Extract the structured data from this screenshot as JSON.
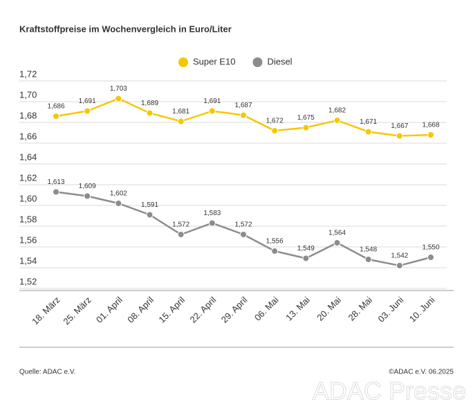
{
  "chart_data": {
    "type": "line",
    "title": "Kraftstoffpreise im Wochenvergleich in Euro/Liter",
    "categories": [
      "18. März",
      "25. März",
      "01. April",
      "08. April",
      "15. April",
      "22. April",
      "29. April",
      "06. Mai",
      "13. Mai",
      "20. Mai",
      "28. Mai",
      "03. Juni",
      "10. Juni"
    ],
    "series": [
      {
        "name": "Super E10",
        "color": "#f5c800",
        "values": [
          1.686,
          1.691,
          1.703,
          1.689,
          1.681,
          1.691,
          1.687,
          1.672,
          1.675,
          1.682,
          1.671,
          1.667,
          1.668
        ],
        "value_labels": [
          "1,686",
          "1,691",
          "1,703",
          "1,689",
          "1,681",
          "1,691",
          "1,687",
          "1,672",
          "1,675",
          "1,682",
          "1,671",
          "1,667",
          "1,668"
        ]
      },
      {
        "name": "Diesel",
        "color": "#8c8c8c",
        "values": [
          1.613,
          1.609,
          1.602,
          1.591,
          1.572,
          1.583,
          1.572,
          1.556,
          1.549,
          1.564,
          1.548,
          1.542,
          1.55
        ],
        "value_labels": [
          "1,613",
          "1,609",
          "1,602",
          "1,591",
          "1,572",
          "1,583",
          "1,572",
          "1,556",
          "1,549",
          "1,564",
          "1,548",
          "1,542",
          "1,550"
        ]
      }
    ],
    "ylim": [
      1.52,
      1.72
    ],
    "yticks": [
      {
        "value": 1.52,
        "label": "1,52"
      },
      {
        "value": 1.54,
        "label": "1,54"
      },
      {
        "value": 1.56,
        "label": "1,56"
      },
      {
        "value": 1.58,
        "label": "1,58"
      },
      {
        "value": 1.6,
        "label": "1,60"
      },
      {
        "value": 1.62,
        "label": "1,62"
      },
      {
        "value": 1.64,
        "label": "1,64"
      },
      {
        "value": 1.66,
        "label": "1,66"
      },
      {
        "value": 1.68,
        "label": "1,68"
      },
      {
        "value": 1.7,
        "label": "1,70"
      },
      {
        "value": 1.72,
        "label": "1,72"
      }
    ],
    "grid": true,
    "legend": "top",
    "source": "Quelle: ADAC e.V.",
    "copyright": "©ADAC e.V. 06.2025",
    "watermark": "ADAC Presse"
  }
}
